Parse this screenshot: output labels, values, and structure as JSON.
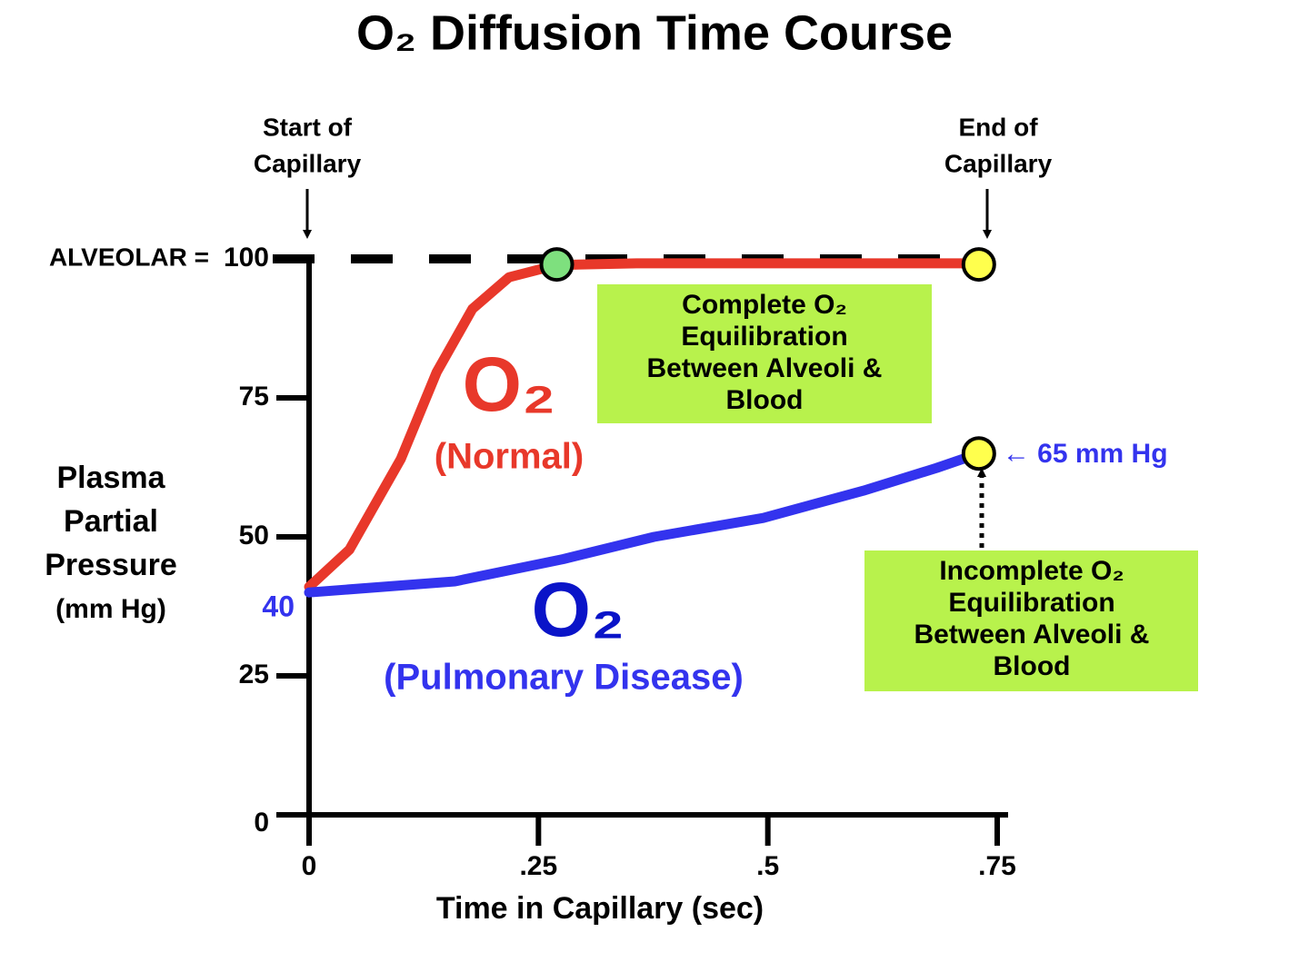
{
  "chart_data": {
    "type": "line",
    "title": "O₂ Diffusion Time Course",
    "xlabel": "Time in Capillary (sec)",
    "ylabel": [
      "Plasma",
      "Partial",
      "Pressure",
      "(mm Hg)"
    ],
    "xlim": [
      0,
      0.75
    ],
    "ylim": [
      0,
      100
    ],
    "xticks": [
      0,
      {
        "value": 0.25,
        "label": ".25"
      },
      {
        "value": 0.5,
        "label": ".5"
      },
      {
        "value": 0.75,
        "label": ".75"
      }
    ],
    "yticks": [
      0,
      25,
      50,
      75,
      100
    ],
    "reference_line": {
      "value": 100,
      "label": "ALVEOLAR =",
      "color": "#000000",
      "dashed": true
    },
    "series": [
      {
        "name": "O₂",
        "sublabel": "(Normal)",
        "color": "#e8382a",
        "x": [
          0,
          0.044,
          0.069,
          0.1,
          0.139,
          0.178,
          0.218,
          0.27,
          0.357,
          0.73
        ],
        "values": [
          41,
          47.7,
          55,
          64,
          79.6,
          91,
          96.7,
          98.9,
          99.2,
          99.2
        ]
      },
      {
        "name": "O₂",
        "sublabel": "(Pulmonary Disease)",
        "color": "#3333ee",
        "x": [
          0,
          0.159,
          0.277,
          0.376,
          0.495,
          0.604,
          0.684,
          0.73
        ],
        "values": [
          40,
          42,
          46,
          50,
          53.4,
          58.3,
          62.4,
          65
        ],
        "value_labels": [
          "40",
          null,
          null,
          null,
          null,
          null,
          null,
          "← 65 mm Hg"
        ]
      }
    ],
    "points": [
      {
        "x": 0.27,
        "y": 99,
        "color": "#7ee07e"
      },
      {
        "x": 0.73,
        "y": 99,
        "color": "#ffff4d"
      },
      {
        "x": 0.73,
        "y": 65,
        "color": "#ffff4d"
      }
    ],
    "annotations": [
      {
        "text": [
          "Start of",
          "Capillary"
        ]
      },
      {
        "text": [
          "End of",
          "Capillary"
        ]
      },
      {
        "text": [
          "Complete O₂",
          "Equilibration",
          "Between Alveoli &",
          "Blood"
        ]
      },
      {
        "text": [
          "Incomplete O₂",
          "Equilibration",
          "Between Alveoli &",
          "Blood"
        ]
      }
    ]
  }
}
